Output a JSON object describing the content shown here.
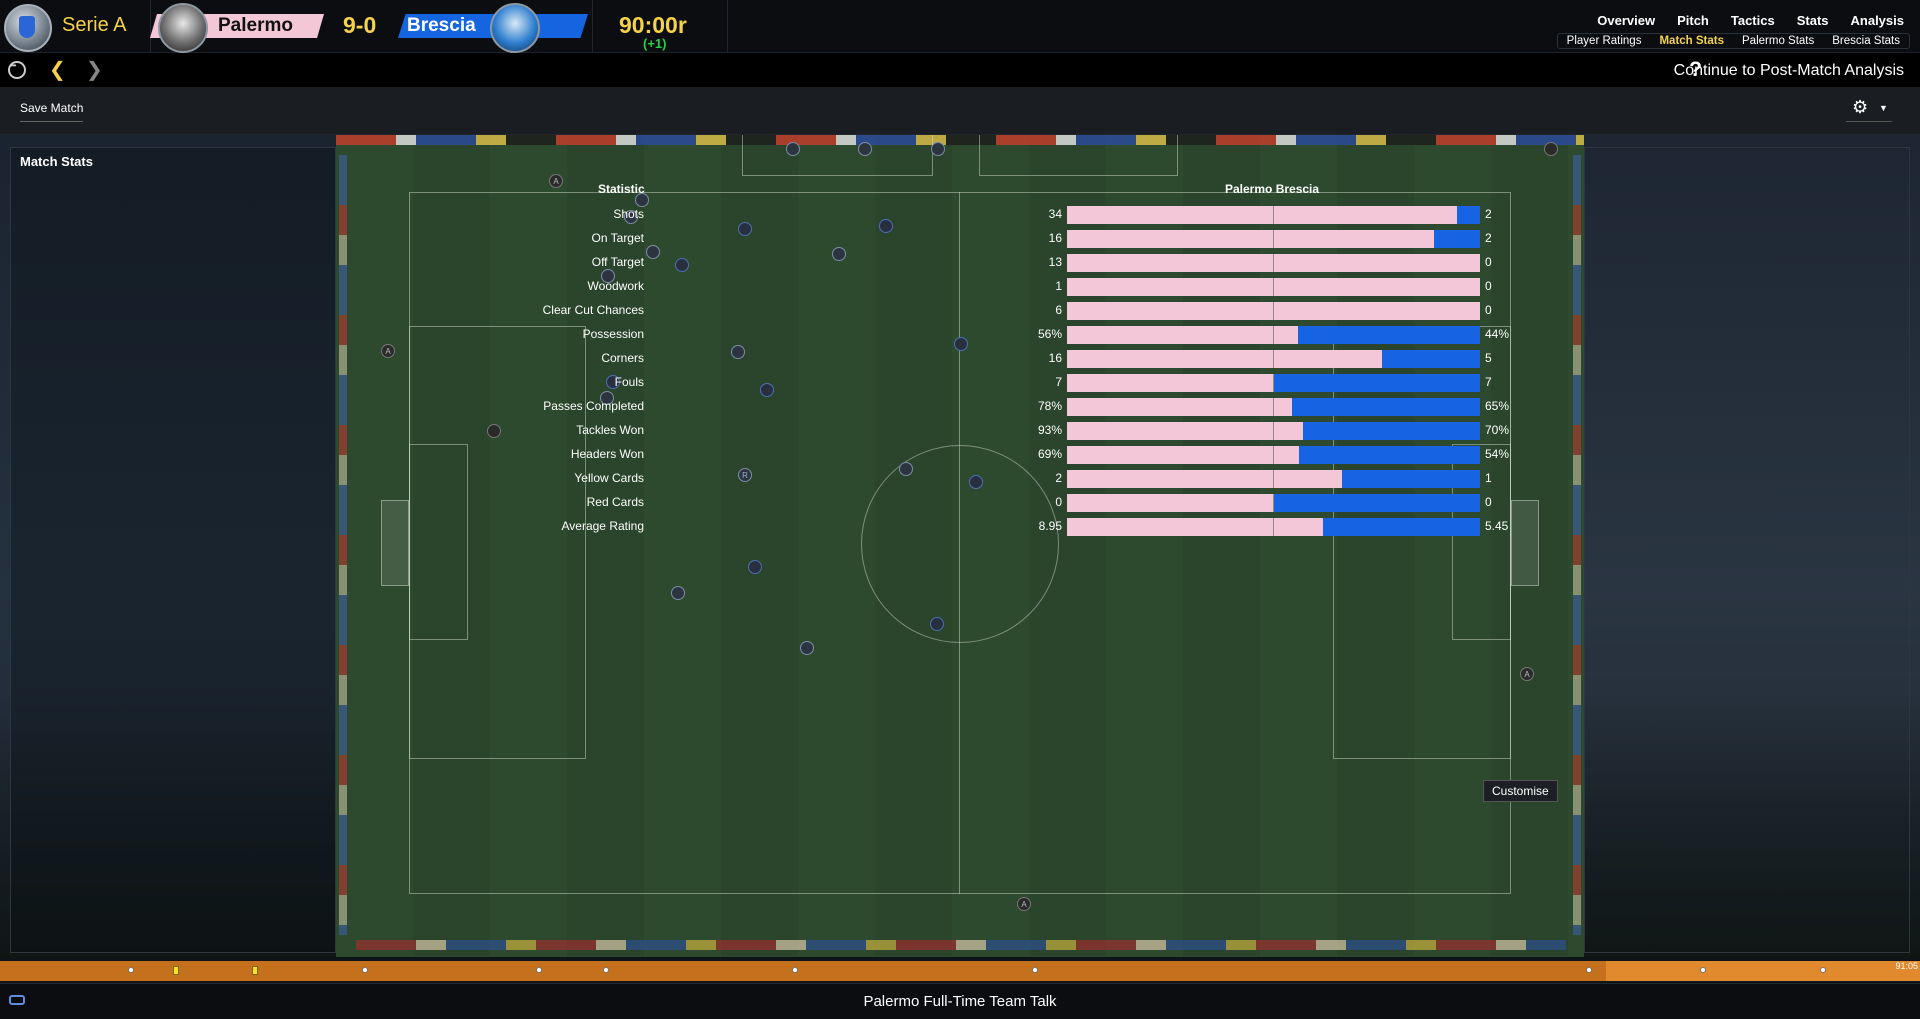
{
  "header": {
    "league": "Serie A",
    "home_team": "Palermo",
    "score": "9-0",
    "away_team": "Brescia",
    "clock": "90:00r",
    "added_time": "(+1)",
    "nav": [
      "Overview",
      "Pitch",
      "Tactics",
      "Stats",
      "Analysis"
    ],
    "subnav": [
      "Player Ratings",
      "Match Stats",
      "Palermo Stats",
      "Brescia Stats"
    ],
    "active_subnav": "Match Stats"
  },
  "navbar": {
    "continue_label": "Continue to Post-Match Analysis",
    "icons": [
      "home-icon",
      "back-arrow-icon",
      "forward-arrow-icon",
      "help-icon"
    ]
  },
  "toolbar": {
    "save_label": "Save Match",
    "settings_icon": "gear-icon"
  },
  "panel": {
    "title": "Match Stats"
  },
  "stats": {
    "header_stat": "Statistic",
    "header_teams": "Palermo  Brescia",
    "home_color": "#f3c7d8",
    "away_color": "#1664e4",
    "rows": [
      {
        "label": "Shots",
        "home": "34",
        "away": "2",
        "home_share": 0.944
      },
      {
        "label": "On Target",
        "home": "16",
        "away": "2",
        "home_share": 0.889
      },
      {
        "label": "Off Target",
        "home": "13",
        "away": "0",
        "home_share": 1.0
      },
      {
        "label": "Woodwork",
        "home": "1",
        "away": "0",
        "home_share": 1.0
      },
      {
        "label": "Clear Cut Chances",
        "home": "6",
        "away": "0",
        "home_share": 1.0
      },
      {
        "label": "Possession",
        "home": "56%",
        "away": "44%",
        "home_share": 0.56
      },
      {
        "label": "Corners",
        "home": "16",
        "away": "5",
        "home_share": 0.762
      },
      {
        "label": "Fouls",
        "home": "7",
        "away": "7",
        "home_share": 0.5
      },
      {
        "label": "Passes Completed",
        "home": "78%",
        "away": "65%",
        "home_share": 0.545
      },
      {
        "label": "Tackles Won",
        "home": "93%",
        "away": "70%",
        "home_share": 0.571
      },
      {
        "label": "Headers Won",
        "home": "69%",
        "away": "54%",
        "home_share": 0.561
      },
      {
        "label": "Yellow Cards",
        "home": "2",
        "away": "1",
        "home_share": 0.667
      },
      {
        "label": "Red Cards",
        "home": "0",
        "away": "0",
        "home_share": 0.5
      },
      {
        "label": "Average Rating",
        "home": "8.95",
        "away": "5.45",
        "home_share": 0.621
      }
    ]
  },
  "customise_label": "Customise",
  "timeline": {
    "time": "91:05"
  },
  "bottom": {
    "team_talk": "Palermo Full-Time Team Talk"
  }
}
